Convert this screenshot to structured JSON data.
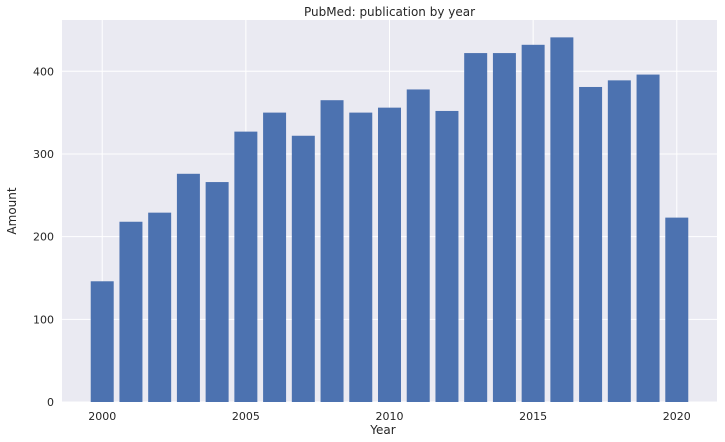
{
  "chart_data": {
    "type": "bar",
    "title": "PubMed: publication by year",
    "xlabel": "Year",
    "ylabel": "Amount",
    "x": [
      2000,
      2001,
      2002,
      2003,
      2004,
      2005,
      2006,
      2007,
      2008,
      2009,
      2010,
      2011,
      2012,
      2013,
      2014,
      2015,
      2016,
      2017,
      2018,
      2019,
      2020
    ],
    "values": [
      146,
      218,
      229,
      276,
      266,
      327,
      350,
      322,
      365,
      350,
      356,
      378,
      352,
      422,
      422,
      432,
      441,
      381,
      389,
      396,
      223
    ],
    "xlim": [
      1998.6,
      2021.4
    ],
    "ylim": [
      0,
      462
    ],
    "xticks": [
      2000,
      2005,
      2010,
      2015,
      2020
    ],
    "yticks": [
      0,
      100,
      200,
      300,
      400
    ],
    "grid": true,
    "colors": {
      "bar": "#4c72b0",
      "background": "#eaeaf2",
      "grid": "#ffffff"
    }
  }
}
